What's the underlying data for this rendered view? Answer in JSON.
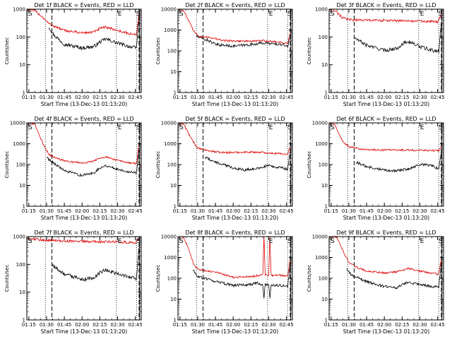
{
  "chart_data": [
    {
      "type": "line",
      "title": "Det 1f BLACK = Events, RED = LLD",
      "xlabel": "Start Time (13-Dec-13 01:13:20)",
      "ylabel": "Counts/sec",
      "xlim": [
        "01:13:20",
        "02:50:00"
      ],
      "ylim": [
        1,
        1000
      ],
      "yscale": "log",
      "grid": false,
      "legend": "none",
      "x_ticks": [
        "01:15",
        "01:30",
        "01:45",
        "02:00",
        "02:15",
        "02:30",
        "02:45"
      ],
      "y_ticks": [
        "1",
        "10",
        "100",
        "1000"
      ],
      "markers": {
        "solid": [
          "01:13:20",
          "02:48:40"
        ],
        "dotted": [
          "01:29:00",
          "02:29:00",
          "02:46:00"
        ],
        "dashed": [
          "01:34:30",
          "02:48:10"
        ]
      },
      "corner_labels": {
        "left": "S",
        "right": "E",
        "far_right": "S"
      },
      "series": [
        {
          "name": "Events",
          "color": "#000000",
          "x": [
            "01:32",
            "01:36",
            "01:45",
            "02:00",
            "02:10",
            "02:15",
            "02:20",
            "02:30",
            "02:40",
            "02:46",
            "02:48"
          ],
          "y": [
            230,
            120,
            55,
            40,
            45,
            65,
            85,
            60,
            45,
            40,
            500
          ]
        },
        {
          "name": "LLD",
          "color": "#dd0000",
          "x": [
            "01:13:20",
            "01:20",
            "01:27",
            "01:32",
            "01:36",
            "01:45",
            "02:00",
            "02:10",
            "02:15",
            "02:20",
            "02:30",
            "02:40",
            "02:46",
            "02:48"
          ],
          "y": [
            1000,
            900,
            500,
            300,
            250,
            170,
            140,
            150,
            200,
            230,
            170,
            130,
            120,
            700
          ]
        }
      ]
    },
    {
      "type": "line",
      "title": "Det 2f BLACK = Events, RED = LLD",
      "xlabel": "Start Time (13-Dec-13 01:13:20)",
      "ylabel": "Counts/sec",
      "xlim": [
        "01:13:20",
        "02:50:00"
      ],
      "ylim": [
        1,
        10000
      ],
      "yscale": "log",
      "grid": false,
      "legend": "none",
      "x_ticks": [
        "01:15",
        "01:30",
        "01:45",
        "02:00",
        "02:15",
        "02:30",
        "02:45"
      ],
      "y_ticks": [
        "1",
        "10",
        "100",
        "1000",
        "10000"
      ],
      "markers": {
        "solid": [
          "01:13:20",
          "02:48:40"
        ],
        "dotted": [
          "01:29:00",
          "02:29:00",
          "02:46:00"
        ],
        "dashed": [
          "01:34:30",
          "02:48:10"
        ]
      },
      "corner_labels": {
        "left": "S",
        "right": "E",
        "far_right": "S"
      },
      "series": [
        {
          "name": "Events",
          "color": "#000000",
          "x": [
            "01:29",
            "01:33",
            "01:40",
            "01:45",
            "02:00",
            "02:15",
            "02:25",
            "02:40",
            "02:46",
            "02:48"
          ],
          "y": [
            500,
            400,
            300,
            200,
            170,
            200,
            240,
            200,
            170,
            400
          ]
        },
        {
          "name": "LLD",
          "color": "#dd0000",
          "x": [
            "01:13:20",
            "01:18",
            "01:22",
            "01:27",
            "01:32",
            "01:40",
            "01:50",
            "02:00",
            "02:15",
            "02:25",
            "02:40",
            "02:46",
            "02:48"
          ],
          "y": [
            10000,
            9000,
            3000,
            800,
            480,
            450,
            320,
            300,
            290,
            310,
            260,
            220,
            700
          ]
        }
      ]
    },
    {
      "type": "line",
      "title": "Det 3f BLACK = Events, RED = LLD",
      "xlabel": "Start Time (13-Dec-13 01:13:20)",
      "ylabel": "Counts/sec",
      "xlim": [
        "01:13:20",
        "02:50:00"
      ],
      "ylim": [
        1,
        1000
      ],
      "yscale": "log",
      "grid": false,
      "legend": "none",
      "x_ticks": [
        "01:15",
        "01:30",
        "01:45",
        "02:00",
        "02:15",
        "02:30",
        "02:45"
      ],
      "y_ticks": [
        "1",
        "10",
        "100",
        "1000"
      ],
      "markers": {
        "solid": [
          "01:13:20",
          "02:48:40"
        ],
        "dotted": [
          "01:29:00",
          "02:29:00",
          "02:46:00"
        ],
        "dashed": [
          "01:34:30",
          "02:48:10"
        ]
      },
      "corner_labels": {
        "left": "S",
        "right": "E",
        "far_right": "S"
      },
      "series": [
        {
          "name": "Events",
          "color": "#000000",
          "x": [
            "01:35",
            "01:45",
            "02:00",
            "02:10",
            "02:15",
            "02:20",
            "02:30",
            "02:40",
            "02:46",
            "02:48"
          ],
          "y": [
            90,
            50,
            33,
            38,
            55,
            70,
            45,
            33,
            30,
            300
          ]
        },
        {
          "name": "LLD",
          "color": "#dd0000",
          "x": [
            "01:13:20",
            "01:18",
            "01:24",
            "01:30",
            "01:45",
            "02:00",
            "02:15",
            "02:30",
            "02:45",
            "02:48"
          ],
          "y": [
            1000,
            900,
            500,
            420,
            400,
            390,
            380,
            370,
            350,
            650
          ]
        }
      ]
    },
    {
      "type": "line",
      "title": "Det 4f BLACK = Events, RED = LLD",
      "xlabel": "Start Time (13-Dec-13 01:13:20)",
      "ylabel": "Counts/sec",
      "xlim": [
        "01:13:20",
        "02:50:00"
      ],
      "ylim": [
        1,
        10000
      ],
      "yscale": "log",
      "grid": false,
      "legend": "none",
      "x_ticks": [
        "01:15",
        "01:30",
        "01:45",
        "02:00",
        "02:15",
        "02:30",
        "02:45"
      ],
      "y_ticks": [
        "1",
        "10",
        "100",
        "1000",
        "10000"
      ],
      "markers": {
        "solid": [
          "01:13:20",
          "02:48:40"
        ],
        "dotted": [
          "01:29:00",
          "02:29:00",
          "02:46:00"
        ],
        "dashed": [
          "01:34:30",
          "02:48:10"
        ]
      },
      "corner_labels": {
        "left": "S",
        "right": "E",
        "far_right": "S"
      },
      "series": [
        {
          "name": "Events",
          "color": "#000000",
          "x": [
            "01:30",
            "01:36",
            "01:45",
            "02:00",
            "02:10",
            "02:15",
            "02:20",
            "02:30",
            "02:40",
            "02:46",
            "02:48"
          ],
          "y": [
            220,
            120,
            50,
            30,
            40,
            70,
            90,
            60,
            45,
            40,
            500
          ]
        },
        {
          "name": "LLD",
          "color": "#dd0000",
          "x": [
            "01:13:20",
            "01:20",
            "01:27",
            "01:32",
            "01:36",
            "01:45",
            "02:00",
            "02:10",
            "02:15",
            "02:20",
            "02:30",
            "02:40",
            "02:46",
            "02:48"
          ],
          "y": [
            10000,
            9000,
            1000,
            300,
            230,
            150,
            120,
            150,
            200,
            230,
            160,
            120,
            110,
            900
          ]
        }
      ]
    },
    {
      "type": "line",
      "title": "Det 5f BLACK = Events, RED = LLD",
      "xlabel": "Start Time (13-Dec-13 01:13:20)",
      "ylabel": "Counts/sec",
      "xlim": [
        "01:13:20",
        "02:50:00"
      ],
      "ylim": [
        1,
        10000
      ],
      "yscale": "log",
      "grid": false,
      "legend": "none",
      "x_ticks": [
        "01:15",
        "01:30",
        "01:45",
        "02:00",
        "02:15",
        "02:30",
        "02:45"
      ],
      "y_ticks": [
        "1",
        "10",
        "100",
        "1000",
        "10000"
      ],
      "markers": {
        "solid": [
          "01:13:20",
          "02:48:40"
        ],
        "dotted": [
          "01:29:00",
          "02:29:00",
          "02:46:00"
        ],
        "dashed": [
          "01:34:30",
          "02:48:10"
        ]
      },
      "corner_labels": {
        "left": "S",
        "right": "E",
        "far_right": "S"
      },
      "series": [
        {
          "name": "Events",
          "color": "#000000",
          "x": [
            "01:36",
            "01:45",
            "02:00",
            "02:10",
            "02:20",
            "02:30",
            "02:40",
            "02:46",
            "02:48"
          ],
          "y": [
            230,
            130,
            70,
            55,
            65,
            90,
            70,
            60,
            400
          ]
        },
        {
          "name": "LLD",
          "color": "#dd0000",
          "x": [
            "01:13:20",
            "01:18",
            "01:24",
            "01:30",
            "01:40",
            "01:50",
            "02:00",
            "02:15",
            "02:25",
            "02:40",
            "02:46",
            "02:48"
          ],
          "y": [
            10000,
            9000,
            2000,
            600,
            450,
            380,
            380,
            400,
            380,
            330,
            320,
            700
          ]
        }
      ]
    },
    {
      "type": "line",
      "title": "Det 6f BLACK = Events, RED = LLD",
      "xlabel": "Start Time (13-Dec-13 01:13:20)",
      "ylabel": "Counts/sec",
      "xlim": [
        "01:13:20",
        "02:50:00"
      ],
      "ylim": [
        1,
        10000
      ],
      "yscale": "log",
      "grid": false,
      "legend": "none",
      "x_ticks": [
        "01:15",
        "01:30",
        "01:45",
        "02:00",
        "02:15",
        "02:30",
        "02:45"
      ],
      "y_ticks": [
        "1",
        "10",
        "100",
        "1000",
        "10000"
      ],
      "markers": {
        "solid": [
          "01:13:20",
          "02:48:40"
        ],
        "dotted": [
          "01:29:00",
          "02:29:00",
          "02:46:00"
        ],
        "dashed": [
          "01:34:30",
          "02:48:10"
        ]
      },
      "corner_labels": {
        "left": "S",
        "right": "E",
        "far_right": "S"
      },
      "series": [
        {
          "name": "Events",
          "color": "#000000",
          "x": [
            "01:36",
            "01:45",
            "02:00",
            "02:10",
            "02:20",
            "02:30",
            "02:40",
            "02:46",
            "02:48"
          ],
          "y": [
            130,
            80,
            55,
            50,
            60,
            100,
            90,
            60,
            400
          ]
        },
        {
          "name": "LLD",
          "color": "#dd0000",
          "x": [
            "01:13:20",
            "01:18",
            "01:24",
            "01:30",
            "01:40",
            "01:50",
            "02:00",
            "02:15",
            "02:30",
            "02:40",
            "02:46",
            "02:48"
          ],
          "y": [
            10000,
            9000,
            1500,
            700,
            550,
            500,
            500,
            500,
            490,
            470,
            470,
            800
          ]
        }
      ]
    },
    {
      "type": "line",
      "title": "Det 7f BLACK = Events, RED = LLD",
      "xlabel": "Start Time (13-Dec-13 01:13:20)",
      "ylabel": "Counts/sec",
      "xlim": [
        "01:13:20",
        "02:50:00"
      ],
      "ylim": [
        1,
        1000
      ],
      "yscale": "log",
      "grid": false,
      "legend": "none",
      "x_ticks": [
        "01:15",
        "01:30",
        "01:45",
        "02:00",
        "02:15",
        "02:30",
        "02:45"
      ],
      "y_ticks": [
        "1",
        "10",
        "100",
        "1000"
      ],
      "markers": {
        "solid": [
          "01:13:20",
          "02:48:40"
        ],
        "dotted": [
          "01:29:00",
          "02:29:00",
          "02:46:00"
        ],
        "dashed": [
          "01:34:30",
          "02:48:10"
        ]
      },
      "corner_labels": {
        "left": "S",
        "right": "E",
        "far_right": "S"
      },
      "series": [
        {
          "name": "Events",
          "color": "#000000",
          "x": [
            "01:35",
            "01:45",
            "02:00",
            "02:10",
            "02:15",
            "02:20",
            "02:30",
            "02:40",
            "02:46",
            "02:48"
          ],
          "y": [
            90,
            45,
            28,
            33,
            50,
            65,
            45,
            35,
            30,
            400
          ]
        },
        {
          "name": "LLD",
          "color": "#dd0000",
          "x": [
            "01:13:20",
            "01:20",
            "01:30",
            "01:45",
            "02:00",
            "02:15",
            "02:30",
            "02:45",
            "02:48"
          ],
          "y": [
            850,
            800,
            750,
            700,
            680,
            650,
            650,
            600,
            800
          ]
        }
      ]
    },
    {
      "type": "line",
      "title": "Det 8f BLACK = Events, RED = LLD",
      "xlabel": "Start Time (13-Dec-13 01:13:20)",
      "ylabel": "Counts/sec",
      "xlim": [
        "01:13:20",
        "02:50:00"
      ],
      "ylim": [
        1,
        10000
      ],
      "yscale": "log",
      "grid": false,
      "legend": "none",
      "x_ticks": [
        "01:15",
        "01:30",
        "01:45",
        "02:00",
        "02:15",
        "02:30",
        "02:45"
      ],
      "y_ticks": [
        "1",
        "10",
        "100",
        "1000",
        "10000"
      ],
      "markers": {
        "solid": [
          "01:13:20",
          "02:48:40"
        ],
        "dotted": [
          "01:29:00",
          "02:29:00",
          "02:46:00"
        ],
        "dashed": [
          "01:34:30",
          "02:48:10"
        ]
      },
      "corner_labels": {
        "left": "S",
        "right": "E",
        "far_right": "S"
      },
      "series": [
        {
          "name": "Events",
          "color": "#000000",
          "x": [
            "01:26",
            "01:30",
            "01:45",
            "02:00",
            "02:15",
            "02:20",
            "02:25",
            "02:26",
            "02:27",
            "02:30",
            "02:31",
            "02:32",
            "02:40",
            "02:46",
            "02:48"
          ],
          "y": [
            250,
            120,
            70,
            45,
            50,
            60,
            50,
            12,
            50,
            45,
            12,
            45,
            45,
            40,
            400
          ]
        },
        {
          "name": "LLD",
          "color": "#dd0000",
          "x": [
            "01:13:20",
            "01:18",
            "01:22",
            "01:27",
            "01:32",
            "01:45",
            "02:00",
            "02:15",
            "02:25",
            "02:26",
            "02:27",
            "02:30",
            "02:31",
            "02:32",
            "02:40",
            "02:46",
            "02:48"
          ],
          "y": [
            10000,
            9500,
            3000,
            400,
            250,
            200,
            110,
            120,
            150,
            10000,
            150,
            130,
            10000,
            140,
            140,
            130,
            800
          ]
        }
      ]
    },
    {
      "type": "line",
      "title": "Det 9f BLACK = Events, RED = LLD",
      "xlabel": "Start Time (13-Dec-13 01:13:20)",
      "ylabel": "Counts/sec",
      "xlim": [
        "01:13:20",
        "02:50:00"
      ],
      "ylim": [
        1,
        10000
      ],
      "yscale": "log",
      "grid": false,
      "legend": "none",
      "x_ticks": [
        "01:15",
        "01:30",
        "01:45",
        "02:00",
        "02:15",
        "02:30",
        "02:45"
      ],
      "y_ticks": [
        "1",
        "10",
        "100",
        "1000",
        "10000"
      ],
      "markers": {
        "solid": [
          "01:13:20",
          "02:48:40"
        ],
        "dotted": [
          "01:29:00",
          "02:29:00",
          "02:46:00"
        ],
        "dashed": [
          "01:34:30",
          "02:48:10"
        ]
      },
      "corner_labels": {
        "left": "S",
        "right": "E",
        "far_right": "S"
      },
      "series": [
        {
          "name": "Events",
          "color": "#000000",
          "x": [
            "01:28",
            "01:33",
            "01:45",
            "02:00",
            "02:10",
            "02:15",
            "02:20",
            "02:30",
            "02:40",
            "02:46",
            "02:48"
          ],
          "y": [
            300,
            130,
            70,
            40,
            35,
            50,
            65,
            50,
            40,
            38,
            500
          ]
        },
        {
          "name": "LLD",
          "color": "#dd0000",
          "x": [
            "01:13:20",
            "01:20",
            "01:26",
            "01:30",
            "01:36",
            "01:45",
            "02:00",
            "02:10",
            "02:20",
            "02:30",
            "02:40",
            "02:46",
            "02:48"
          ],
          "y": [
            10000,
            9000,
            1500,
            600,
            350,
            220,
            180,
            200,
            300,
            220,
            170,
            160,
            800
          ]
        }
      ]
    }
  ]
}
